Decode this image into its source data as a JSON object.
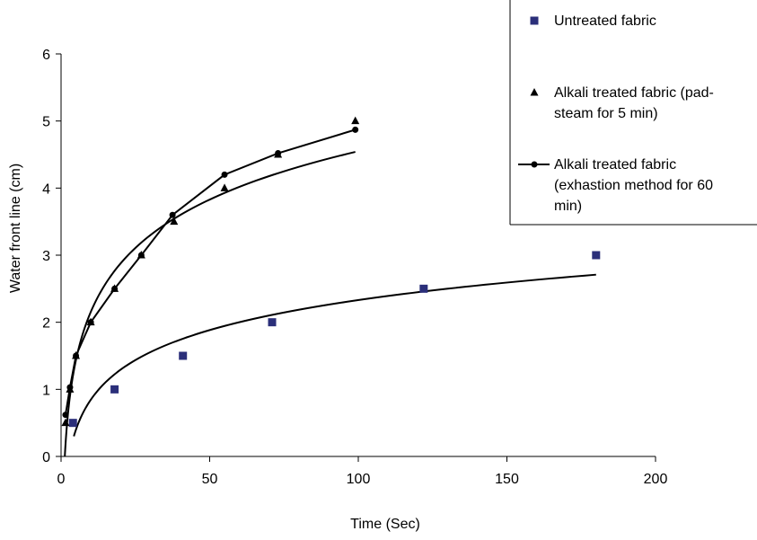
{
  "chart_data": {
    "type": "scatter",
    "xlabel": "Time (Sec)",
    "ylabel": "Water front line (cm)",
    "xlim": [
      0,
      200
    ],
    "ylim": [
      0,
      6
    ],
    "xticks": [
      "0",
      "50",
      "100",
      "150",
      "200"
    ],
    "yticks": [
      "0",
      "1",
      "2",
      "3",
      "4",
      "5",
      "6"
    ],
    "grid": false,
    "legend_position": "top-right",
    "series": [
      {
        "name": "Untreated fabric",
        "marker": "square",
        "color": "#2b2f7a",
        "x": [
          4,
          18,
          41,
          71,
          122,
          180
        ],
        "y": [
          0.5,
          1.0,
          1.5,
          2.0,
          2.5,
          3.0
        ]
      },
      {
        "name": "Alkali treated fabric (pad-steam for 5 min)",
        "marker": "triangle",
        "color": "#000000",
        "x": [
          1.5,
          3,
          5,
          10,
          18,
          27,
          38,
          55,
          73,
          99
        ],
        "y": [
          0.5,
          1.0,
          1.5,
          2.0,
          2.5,
          3.0,
          3.5,
          4.0,
          4.5,
          5.0
        ]
      },
      {
        "name": "Alkali treated fabric (exhastion method for 60 min)",
        "marker": "circle",
        "line": true,
        "color": "#000000",
        "x": [
          1.5,
          3,
          5,
          10,
          18,
          27,
          37.5,
          55,
          73,
          99
        ],
        "y": [
          0.62,
          1.03,
          1.5,
          2.0,
          2.5,
          3.0,
          3.6,
          4.2,
          4.52,
          4.87
        ]
      }
    ],
    "legend_lines": [
      [
        "Untreated fabric"
      ],
      [
        "Alkali treated fabric (pad-",
        "steam for 5 min)"
      ],
      [
        "Alkali treated fabric",
        "(exhastion method for 60",
        "min)"
      ]
    ]
  }
}
